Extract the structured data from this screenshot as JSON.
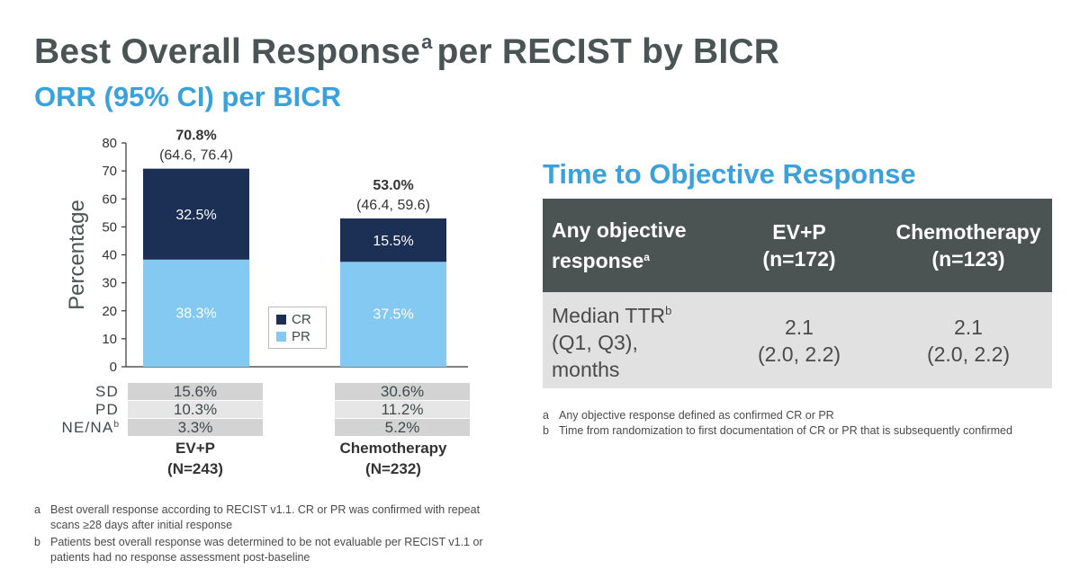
{
  "title": {
    "main": "Best Overall Response",
    "main_sup": "a",
    "main_rest": "per RECIST by BICR"
  },
  "subtitle": "ORR (95% CI) per BICR",
  "chart_data": {
    "type": "bar",
    "stacked": true,
    "categories": [
      "EV+P",
      "Chemotherapy"
    ],
    "series": [
      {
        "name": "CR",
        "values": [
          32.5,
          15.5
        ],
        "color": "#1c2f55"
      },
      {
        "name": "PR",
        "values": [
          38.3,
          37.5
        ],
        "color": "#83c9f1"
      }
    ],
    "totals": [
      70.8,
      53.0
    ],
    "total_labels": [
      "70.8%",
      "53.0%"
    ],
    "ci_labels": [
      "(64.6, 76.4)",
      "(46.4, 59.6)"
    ],
    "segment_labels": {
      "CR": [
        "32.5%",
        "15.5%"
      ],
      "PR": [
        "38.3%",
        "37.5%"
      ]
    },
    "ylabel": "Percentage",
    "ylim": [
      0,
      80
    ],
    "yticks": [
      0,
      10,
      20,
      30,
      40,
      50,
      60,
      70,
      80
    ],
    "legend_position": "center-right"
  },
  "stats": [
    {
      "label": "SD",
      "sup": "",
      "values": [
        "15.6%",
        "30.6%"
      ]
    },
    {
      "label": "PD",
      "sup": "",
      "values": [
        "10.3%",
        "11.2%"
      ]
    },
    {
      "label": "NE/NA",
      "sup": "b",
      "values": [
        "3.3%",
        "5.2%"
      ]
    }
  ],
  "arms": [
    {
      "name": "EV+P",
      "n": "(N=243)"
    },
    {
      "name": "Chemotherapy",
      "n": "(N=232)"
    }
  ],
  "left_footnotes": [
    {
      "mark": "a",
      "text": "Best overall response according to RECIST v1.1. CR or PR was confirmed with repeat scans ≥28 days after initial response"
    },
    {
      "mark": "b",
      "text": "Patients best overall response was determined to be not evaluable per RECIST v1.1 or patients had no response assessment post-baseline"
    }
  ],
  "tor": {
    "title": "Time to Objective Response",
    "header": {
      "col0": "Any objective response",
      "col0_sup": "a",
      "col1_line1": "EV+P",
      "col1_line2": "(n=172)",
      "col2_line1": "Chemotherapy",
      "col2_line2": "(n=123)"
    },
    "row": {
      "label1": "Median TTR",
      "label_sup": "b",
      "label2": "(Q1, Q3),",
      "label3": "months",
      "v1_line1": "2.1",
      "v1_line2": "(2.0, 2.2)",
      "v2_line1": "2.1",
      "v2_line2": "(2.0, 2.2)"
    },
    "footnotes": [
      {
        "mark": "a",
        "text": "Any objective response defined as confirmed CR or PR"
      },
      {
        "mark": "b",
        "text": "Time from randomization to first documentation of CR or PR that is subsequently confirmed"
      }
    ]
  },
  "colors": {
    "title": "#4a5454",
    "accent": "#39a1dc",
    "cr": "#1c2f55",
    "pr": "#83c9f1",
    "table_header": "#4b5353",
    "table_row": "#e1e1e1"
  }
}
